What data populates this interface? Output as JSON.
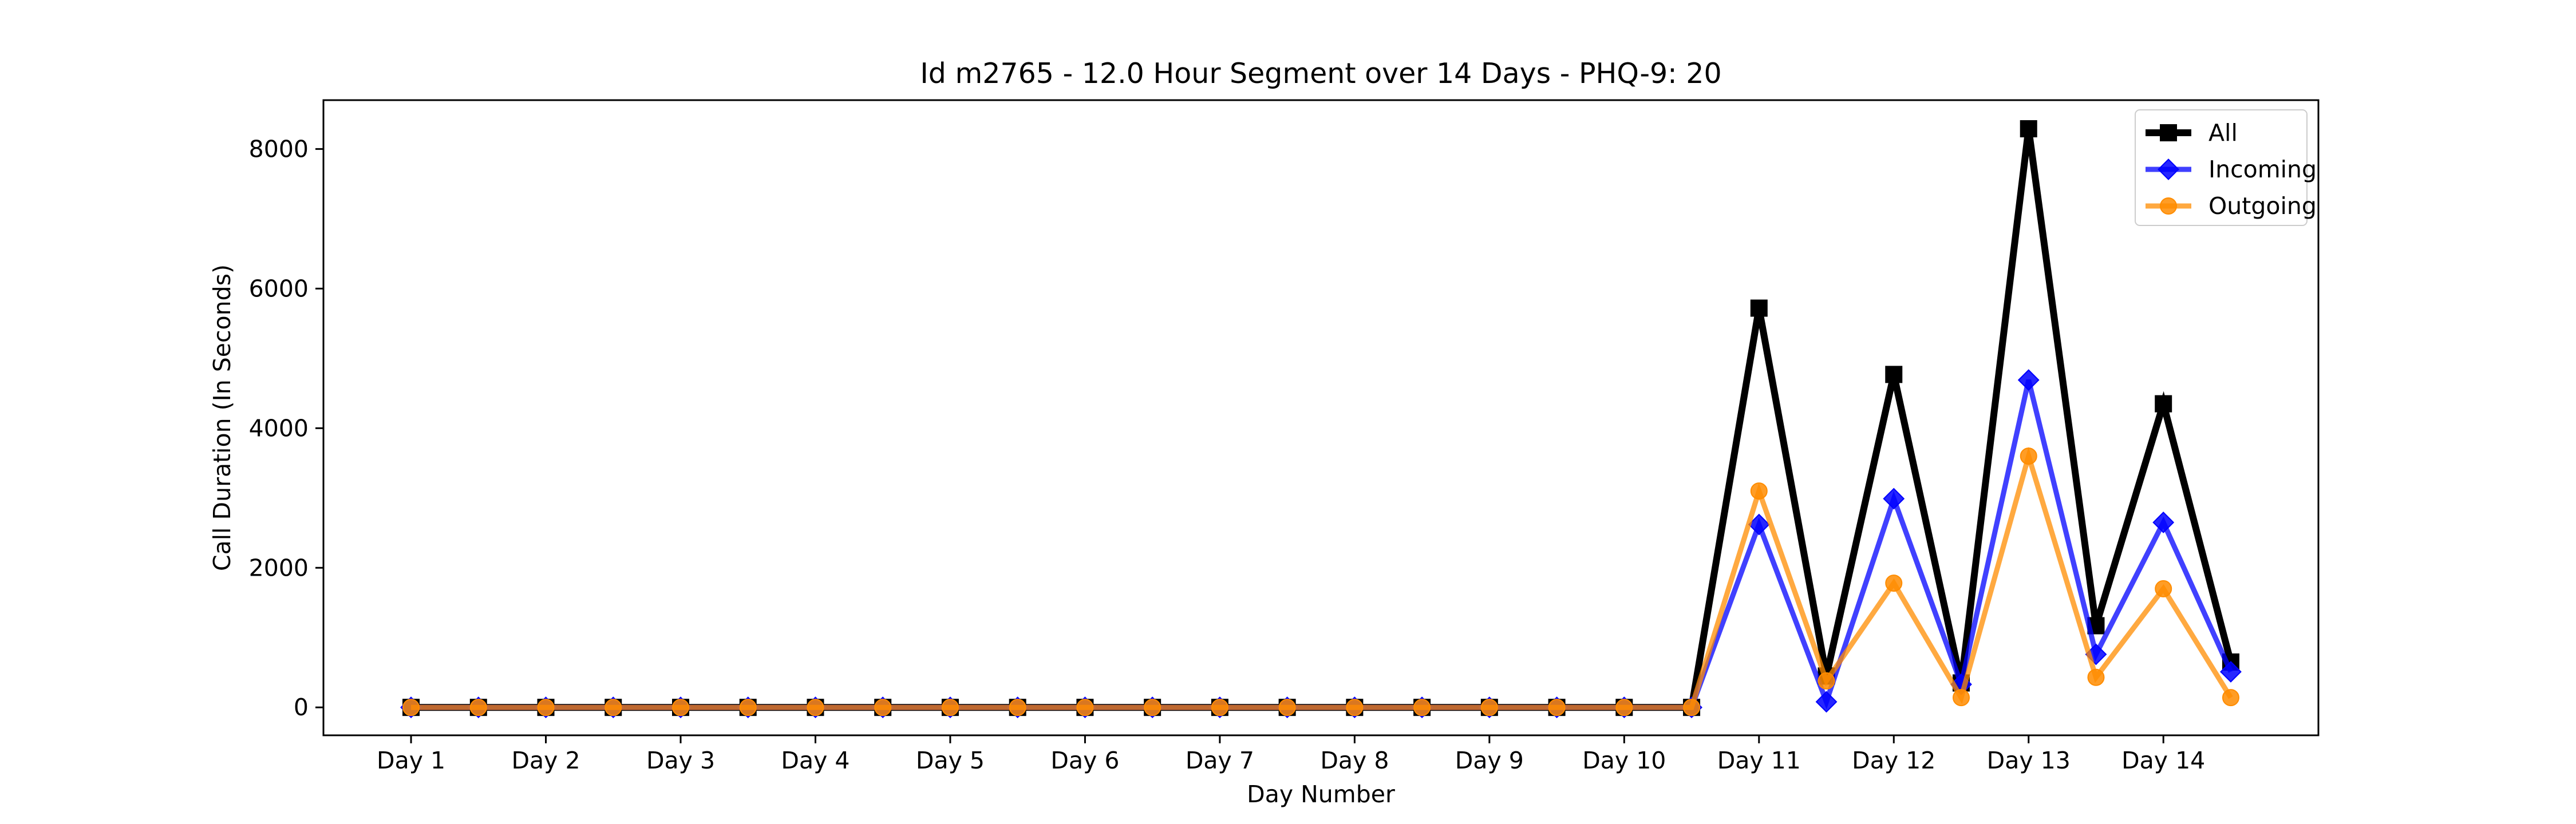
{
  "chart_data": {
    "type": "line",
    "title": "Id m2765 - 12.0 Hour Segment over 14 Days - PHQ-9: 20",
    "xlabel": "Day Number",
    "ylabel": "Call Duration (In Seconds)",
    "x_tick_labels": [
      "Day 1",
      "Day 2",
      "Day 3",
      "Day 4",
      "Day 5",
      "Day 6",
      "Day 7",
      "Day 8",
      "Day 9",
      "Day 10",
      "Day 11",
      "Day 12",
      "Day 13",
      "Day 14"
    ],
    "y_ticks": [
      0,
      2000,
      4000,
      6000,
      8000
    ],
    "xlim": [
      -0.65,
      14.15
    ],
    "ylim": [
      -400,
      8700
    ],
    "grid": false,
    "legend_position": "top-right",
    "x": [
      0,
      0.5,
      1,
      1.5,
      2,
      2.5,
      3,
      3.5,
      4,
      4.5,
      5,
      5.5,
      6,
      6.5,
      7,
      7.5,
      8,
      8.5,
      9,
      9.5,
      10,
      10.5,
      11,
      11.5,
      12,
      12.5,
      13,
      13.5
    ],
    "series": [
      {
        "name": "All",
        "color": "#000000",
        "marker": "square",
        "values": [
          0,
          0,
          0,
          0,
          0,
          0,
          0,
          0,
          0,
          0,
          0,
          0,
          0,
          0,
          0,
          0,
          0,
          0,
          0,
          0,
          5720,
          450,
          4770,
          350,
          8290,
          1170,
          4350,
          650
        ]
      },
      {
        "name": "Incoming",
        "color": "#0000ff",
        "marker": "diamond",
        "values": [
          0,
          0,
          0,
          0,
          0,
          0,
          0,
          0,
          0,
          0,
          0,
          0,
          0,
          0,
          0,
          0,
          0,
          0,
          0,
          0,
          2620,
          80,
          2990,
          330,
          4690,
          760,
          2650,
          510
        ]
      },
      {
        "name": "Outgoing",
        "color": "#ff8c00",
        "marker": "circle",
        "values": [
          0,
          0,
          0,
          0,
          0,
          0,
          0,
          0,
          0,
          0,
          0,
          0,
          0,
          0,
          0,
          0,
          0,
          0,
          0,
          0,
          3100,
          380,
          1780,
          140,
          3600,
          430,
          1700,
          140
        ]
      }
    ]
  }
}
